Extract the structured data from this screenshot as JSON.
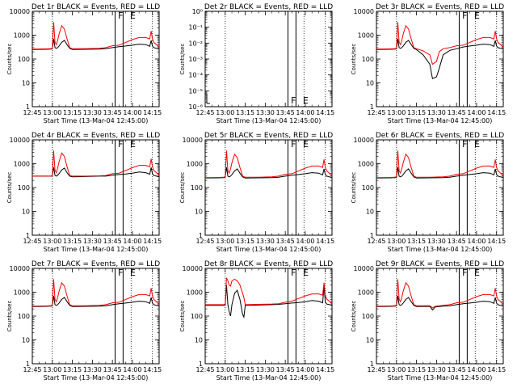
{
  "chart_data": {
    "type": "line",
    "x_tick_labels": [
      "12:45",
      "13:00",
      "13:15",
      "13:30",
      "13:45",
      "14:00",
      "14:15"
    ],
    "x_range_minutes": [
      0,
      95
    ],
    "xlabel": "Start Time (13-Mar-04 12:45:00)",
    "ylabel": "Counts/sec",
    "colors": {
      "events": "#000000",
      "lld": "#ff0000"
    },
    "vertical_lines": {
      "solid_minutes": [
        62,
        68
      ],
      "dotted_minutes": [
        15,
        74,
        90
      ]
    },
    "panels": [
      {
        "title": "Det 1r BLACK = Events, RED = LLD",
        "ylim": [
          1,
          10000
        ],
        "yscale": "log",
        "y_tick_labels": [
          "1",
          "10",
          "100",
          "1000",
          "10000"
        ],
        "flags": [
          {
            "text": "F",
            "minute": 63
          },
          {
            "text": "E",
            "minute": 72
          }
        ],
        "x": [
          0,
          10,
          14,
          15,
          16,
          17,
          18,
          19,
          20,
          22,
          24,
          26,
          28,
          30,
          40,
          50,
          55,
          60,
          65,
          70,
          75,
          80,
          85,
          88,
          89,
          90,
          91,
          93,
          95
        ],
        "series": [
          {
            "name": "BLACK = Events",
            "values": [
              250,
              255,
              260,
              270,
              700,
              300,
              280,
              300,
              350,
              500,
              600,
              400,
              280,
              250,
              255,
              260,
              270,
              300,
              330,
              350,
              380,
              420,
              400,
              340,
              600,
              350,
              300,
              280,
              260
            ]
          },
          {
            "name": "RED = LLD",
            "values": [
              260,
              265,
              270,
              290,
              3500,
              500,
              400,
              600,
              1100,
              2500,
              1800,
              700,
              300,
              270,
              270,
              280,
              300,
              360,
              380,
              500,
              650,
              800,
              800,
              700,
              1500,
              700,
              500,
              400,
              300
            ]
          }
        ]
      },
      {
        "title": "Det 2r BLACK = Events, RED = LLD",
        "ylim": [
          1e-06,
          1
        ],
        "yscale": "log",
        "y_tick_labels": [
          "10⁻⁶",
          "10⁻⁵",
          "10⁻⁴",
          "10⁻³",
          "10⁻²",
          "10⁻¹",
          "10⁰"
        ],
        "flags": [
          {
            "text": "F",
            "minute": 63
          },
          {
            "text": "E",
            "minute": 72
          }
        ],
        "x": [],
        "series": []
      },
      {
        "title": "Det 3r BLACK = Events, RED = LLD",
        "ylim": [
          1,
          10000
        ],
        "yscale": "log",
        "y_tick_labels": [
          "1",
          "10",
          "100",
          "1000",
          "10000"
        ],
        "flags": [
          {
            "text": "F",
            "minute": 63
          },
          {
            "text": "E",
            "minute": 72
          }
        ],
        "x": [
          0,
          10,
          14,
          15,
          16,
          17,
          18,
          19,
          20,
          22,
          24,
          26,
          28,
          30,
          35,
          40,
          42,
          45,
          47,
          50,
          55,
          60,
          65,
          70,
          75,
          80,
          85,
          88,
          89,
          90,
          91,
          93,
          95
        ],
        "series": [
          {
            "name": "BLACK = Events",
            "values": [
              250,
              255,
              260,
              270,
              700,
              300,
              280,
              300,
              350,
              500,
              600,
              400,
              280,
              250,
              150,
              60,
              15,
              18,
              40,
              150,
              230,
              270,
              320,
              350,
              380,
              420,
              400,
              340,
              600,
              350,
              300,
              280,
              260
            ]
          },
          {
            "name": "RED = LLD",
            "values": [
              260,
              265,
              270,
              290,
              3500,
              500,
              400,
              600,
              1100,
              2500,
              1800,
              700,
              300,
              270,
              220,
              150,
              60,
              80,
              200,
              270,
              300,
              360,
              380,
              500,
              650,
              800,
              800,
              700,
              1500,
              700,
              500,
              400,
              300
            ]
          }
        ]
      },
      {
        "title": "Det 4r BLACK = Events, RED = LLD",
        "ylim": [
          1,
          10000
        ],
        "yscale": "log",
        "y_tick_labels": [
          "1",
          "10",
          "100",
          "1000",
          "10000"
        ],
        "flags": [
          {
            "text": "F",
            "minute": 63
          },
          {
            "text": "E",
            "minute": 72
          }
        ],
        "x": [
          0,
          10,
          14,
          15,
          16,
          17,
          18,
          19,
          20,
          22,
          24,
          26,
          28,
          30,
          40,
          50,
          55,
          60,
          65,
          70,
          75,
          80,
          85,
          88,
          89,
          90,
          91,
          93,
          95
        ],
        "series": [
          {
            "name": "BLACK = Events",
            "values": [
              300,
              300,
              300,
              310,
              700,
              320,
              300,
              330,
              380,
              550,
              650,
              420,
              300,
              280,
              290,
              300,
              300,
              330,
              350,
              370,
              400,
              450,
              420,
              360,
              700,
              380,
              320,
              300,
              280
            ]
          },
          {
            "name": "RED = LLD",
            "values": [
              300,
              300,
              300,
              320,
              3500,
              520,
              420,
              650,
              1200,
              2800,
              2000,
              750,
              320,
              300,
              300,
              310,
              320,
              380,
              400,
              520,
              680,
              850,
              850,
              750,
              1600,
              750,
              520,
              420,
              320
            ]
          }
        ]
      },
      {
        "title": "Det 5r BLACK = Events, RED = LLD",
        "ylim": [
          1,
          10000
        ],
        "yscale": "log",
        "y_tick_labels": [
          "1",
          "10",
          "100",
          "1000",
          "10000"
        ],
        "flags": [
          {
            "text": "F",
            "minute": 63
          },
          {
            "text": "E",
            "minute": 72
          }
        ],
        "x": [
          0,
          10,
          14,
          15,
          16,
          17,
          18,
          19,
          20,
          22,
          24,
          26,
          28,
          30,
          40,
          50,
          55,
          60,
          65,
          70,
          75,
          80,
          85,
          88,
          89,
          90,
          91,
          93,
          95
        ],
        "series": [
          {
            "name": "BLACK = Events",
            "values": [
              250,
              255,
              260,
              270,
              700,
              300,
              280,
              300,
              350,
              500,
              600,
              400,
              280,
              250,
              255,
              260,
              270,
              300,
              330,
              350,
              380,
              420,
              400,
              340,
              600,
              350,
              300,
              280,
              260
            ]
          },
          {
            "name": "RED = LLD",
            "values": [
              260,
              265,
              270,
              290,
              3500,
              500,
              400,
              600,
              1100,
              2500,
              1800,
              700,
              300,
              270,
              270,
              280,
              300,
              360,
              380,
              500,
              650,
              800,
              800,
              700,
              1500,
              700,
              500,
              400,
              300
            ]
          }
        ]
      },
      {
        "title": "Det 6r BLACK = Events, RED = LLD",
        "ylim": [
          1,
          10000
        ],
        "yscale": "log",
        "y_tick_labels": [
          "1",
          "10",
          "100",
          "1000",
          "10000"
        ],
        "flags": [
          {
            "text": "F",
            "minute": 63
          },
          {
            "text": "E",
            "minute": 72
          }
        ],
        "x": [
          0,
          10,
          14,
          15,
          16,
          17,
          18,
          19,
          20,
          22,
          24,
          26,
          28,
          30,
          40,
          50,
          55,
          60,
          65,
          70,
          75,
          80,
          85,
          88,
          89,
          90,
          91,
          93,
          95
        ],
        "series": [
          {
            "name": "BLACK = Events",
            "values": [
              250,
              255,
              260,
              270,
              700,
              300,
              280,
              300,
              350,
              500,
              600,
              400,
              280,
              250,
              255,
              260,
              270,
              300,
              330,
              350,
              380,
              420,
              400,
              340,
              600,
              350,
              300,
              280,
              260
            ]
          },
          {
            "name": "RED = LLD",
            "values": [
              260,
              265,
              270,
              290,
              3500,
              500,
              400,
              600,
              1100,
              2500,
              1800,
              700,
              300,
              270,
              270,
              280,
              300,
              360,
              380,
              500,
              650,
              800,
              800,
              700,
              1500,
              700,
              500,
              400,
              300
            ]
          }
        ]
      },
      {
        "title": "Det 7r BLACK = Events, RED = LLD",
        "ylim": [
          1,
          10000
        ],
        "yscale": "log",
        "y_tick_labels": [
          "1",
          "10",
          "100",
          "1000",
          "10000"
        ],
        "flags": [
          {
            "text": "F",
            "minute": 63
          },
          {
            "text": "E",
            "minute": 72
          }
        ],
        "x": [
          0,
          10,
          14,
          15,
          16,
          17,
          18,
          19,
          20,
          22,
          24,
          26,
          28,
          30,
          40,
          50,
          55,
          60,
          65,
          70,
          75,
          80,
          85,
          88,
          89,
          90,
          91,
          93,
          95
        ],
        "series": [
          {
            "name": "BLACK = Events",
            "values": [
              250,
              255,
              260,
              270,
              700,
              300,
              280,
              300,
              350,
              500,
              600,
              400,
              280,
              250,
              255,
              260,
              270,
              300,
              330,
              350,
              380,
              420,
              400,
              340,
              600,
              350,
              300,
              280,
              260
            ]
          },
          {
            "name": "RED = LLD",
            "values": [
              260,
              265,
              270,
              290,
              3500,
              500,
              400,
              600,
              1100,
              2500,
              1800,
              700,
              300,
              270,
              270,
              280,
              300,
              360,
              380,
              500,
              650,
              800,
              800,
              700,
              1500,
              700,
              500,
              400,
              300
            ]
          }
        ]
      },
      {
        "title": "Det 8r BLACK = Events, RED = LLD",
        "ylim": [
          1,
          10000
        ],
        "yscale": "log",
        "y_tick_labels": [
          "1",
          "10",
          "100",
          "1000",
          "10000"
        ],
        "flags": [
          {
            "text": "F",
            "minute": 63
          },
          {
            "text": "E",
            "minute": 72
          }
        ],
        "x": [
          0,
          10,
          14,
          15,
          16,
          17,
          18,
          19,
          20,
          22,
          24,
          26,
          28,
          29,
          30,
          40,
          50,
          55,
          60,
          65,
          70,
          75,
          80,
          85,
          88,
          89,
          90,
          91,
          93,
          95
        ],
        "series": [
          {
            "name": "BLACK = Events",
            "values": [
              280,
              280,
              280,
              290,
              2000,
              300,
              150,
              100,
              300,
              900,
              1200,
              500,
              120,
              90,
              280,
              290,
              300,
              310,
              330,
              350,
              370,
              400,
              450,
              420,
              360,
              1800,
              380,
              320,
              300,
              280
            ]
          },
          {
            "name": "RED = LLD",
            "values": [
              300,
              300,
              300,
              320,
              4000,
              3000,
              2000,
              1800,
              3000,
              3500,
              3000,
              2000,
              900,
              600,
              300,
              310,
              320,
              330,
              380,
              420,
              550,
              700,
              850,
              850,
              750,
              2500,
              750,
              520,
              420,
              320
            ]
          }
        ]
      },
      {
        "title": "Det 9r BLACK = Events, RED = LLD",
        "ylim": [
          1,
          10000
        ],
        "yscale": "log",
        "y_tick_labels": [
          "1",
          "10",
          "100",
          "1000",
          "10000"
        ],
        "flags": [
          {
            "text": "F",
            "minute": 63
          },
          {
            "text": "E",
            "minute": 72
          }
        ],
        "x": [
          0,
          10,
          14,
          15,
          16,
          17,
          18,
          19,
          20,
          22,
          24,
          26,
          28,
          30,
          40,
          42,
          44,
          50,
          55,
          60,
          65,
          70,
          75,
          80,
          85,
          88,
          89,
          90,
          91,
          93,
          95
        ],
        "series": [
          {
            "name": "BLACK = Events",
            "values": [
              250,
              255,
              260,
              270,
              700,
              300,
              280,
              300,
              350,
              500,
              600,
              400,
              280,
              250,
              255,
              180,
              240,
              260,
              270,
              300,
              330,
              350,
              380,
              420,
              400,
              340,
              600,
              350,
              300,
              280,
              260
            ]
          },
          {
            "name": "RED = LLD",
            "values": [
              260,
              265,
              270,
              290,
              3500,
              500,
              400,
              600,
              1100,
              2500,
              1800,
              700,
              300,
              270,
              270,
              220,
              260,
              280,
              300,
              360,
              380,
              500,
              650,
              800,
              800,
              700,
              1500,
              700,
              500,
              400,
              300
            ]
          }
        ]
      }
    ]
  }
}
